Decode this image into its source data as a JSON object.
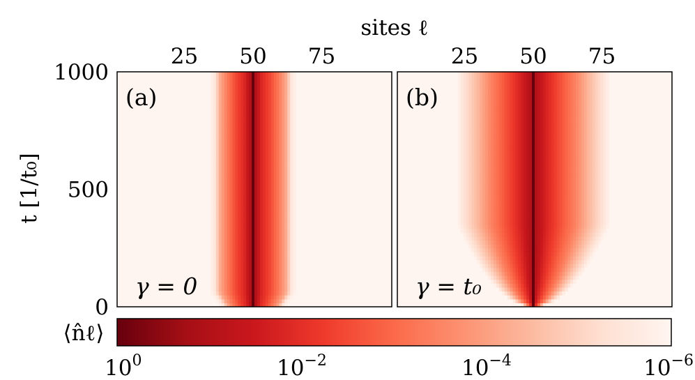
{
  "chart_data": {
    "type": "heatmap",
    "title": "",
    "top_axis_label": "sites ℓ",
    "ylabel": "t [1/t₀]",
    "x_ticks": [
      25,
      50,
      75
    ],
    "xlim": [
      1,
      100
    ],
    "y_ticks": [
      0,
      500,
      1000
    ],
    "ylim": [
      0,
      1000
    ],
    "panels": [
      {
        "id": "a",
        "label": "(a)",
        "annotation": "γ = 0",
        "center_site": 50,
        "profile": [
          {
            "distance": 0,
            "log10_density": 0
          },
          {
            "distance": 1,
            "log10_density": -1
          },
          {
            "distance": 3,
            "log10_density": -1.8
          },
          {
            "distance": 6,
            "log10_density": -2.4
          },
          {
            "distance": 9,
            "log10_density": -3.2
          },
          {
            "distance": 12,
            "log10_density": -4.2
          },
          {
            "distance": 14,
            "log10_density": -5.5
          },
          {
            "distance": 16,
            "log10_density": -6
          }
        ]
      },
      {
        "id": "b",
        "label": "(b)",
        "annotation": "γ = t₀",
        "center_site": 50,
        "profile": [
          {
            "distance": 0,
            "log10_density": 0
          },
          {
            "distance": 1,
            "log10_density": -1
          },
          {
            "distance": 5,
            "log10_density": -1.8
          },
          {
            "distance": 10,
            "log10_density": -2.6
          },
          {
            "distance": 15,
            "log10_density": -3.4
          },
          {
            "distance": 20,
            "log10_density": -4.4
          },
          {
            "distance": 25,
            "log10_density": -5.3
          },
          {
            "distance": 28,
            "log10_density": -6
          }
        ]
      }
    ],
    "colorbar": {
      "label": "⟨n̂ℓ⟩",
      "scale": "log",
      "range": [
        "10^0",
        "10^-6"
      ],
      "ticks": [
        {
          "base": "10",
          "exp": "0"
        },
        {
          "base": "10",
          "exp": "−2"
        },
        {
          "base": "10",
          "exp": "−4"
        },
        {
          "base": "10",
          "exp": "−6"
        }
      ],
      "colormap": "Reds",
      "colors": [
        "#67000d",
        "#a50f15",
        "#cb181d",
        "#ef3b2c",
        "#fb6a4a",
        "#fc9272",
        "#fcbba1",
        "#fee0d2",
        "#fff5f0"
      ]
    }
  }
}
